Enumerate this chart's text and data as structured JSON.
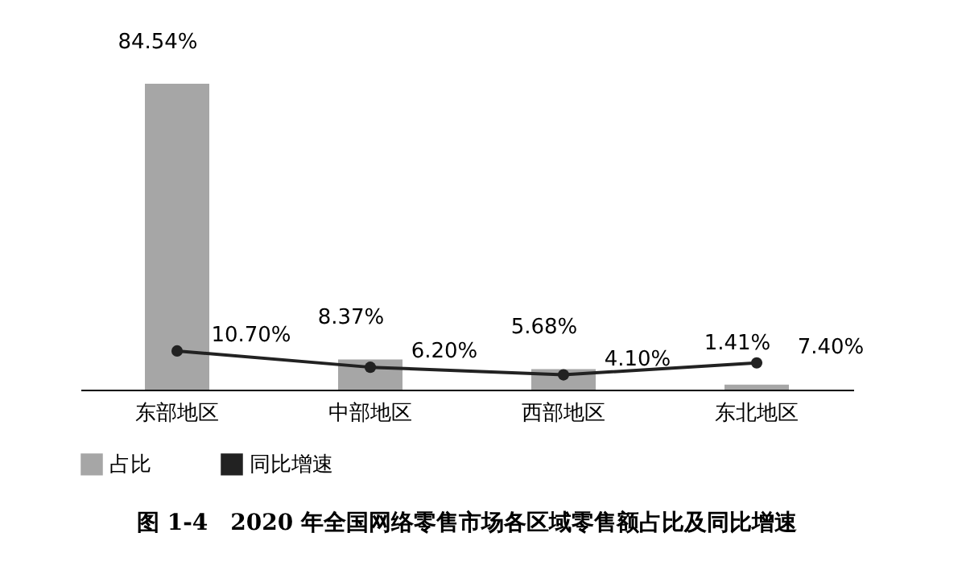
{
  "chart_data": {
    "type": "bar",
    "title": "图 1-4　2020 年全国网络零售市场各区域零售额占比及同比增速",
    "categories": [
      "东部地区",
      "中部地区",
      "西部地区",
      "东北地区"
    ],
    "series": [
      {
        "name": "占比",
        "color": "#a6a6a6",
        "values": [
          84.54,
          8.37,
          5.68,
          1.41
        ],
        "value_labels": [
          "84.54%",
          "8.37%",
          "5.68%",
          "1.41%"
        ]
      },
      {
        "name": "同比增速",
        "type": "line",
        "color": "#222222",
        "values": [
          10.7,
          6.2,
          4.1,
          7.4
        ],
        "value_labels": [
          "10.70%",
          "6.20%",
          "4.10%",
          "7.40%"
        ]
      }
    ],
    "legend": "bottom",
    "grid": false,
    "tick_labels": "x",
    "marker": "circle",
    "line_style": "solid"
  }
}
